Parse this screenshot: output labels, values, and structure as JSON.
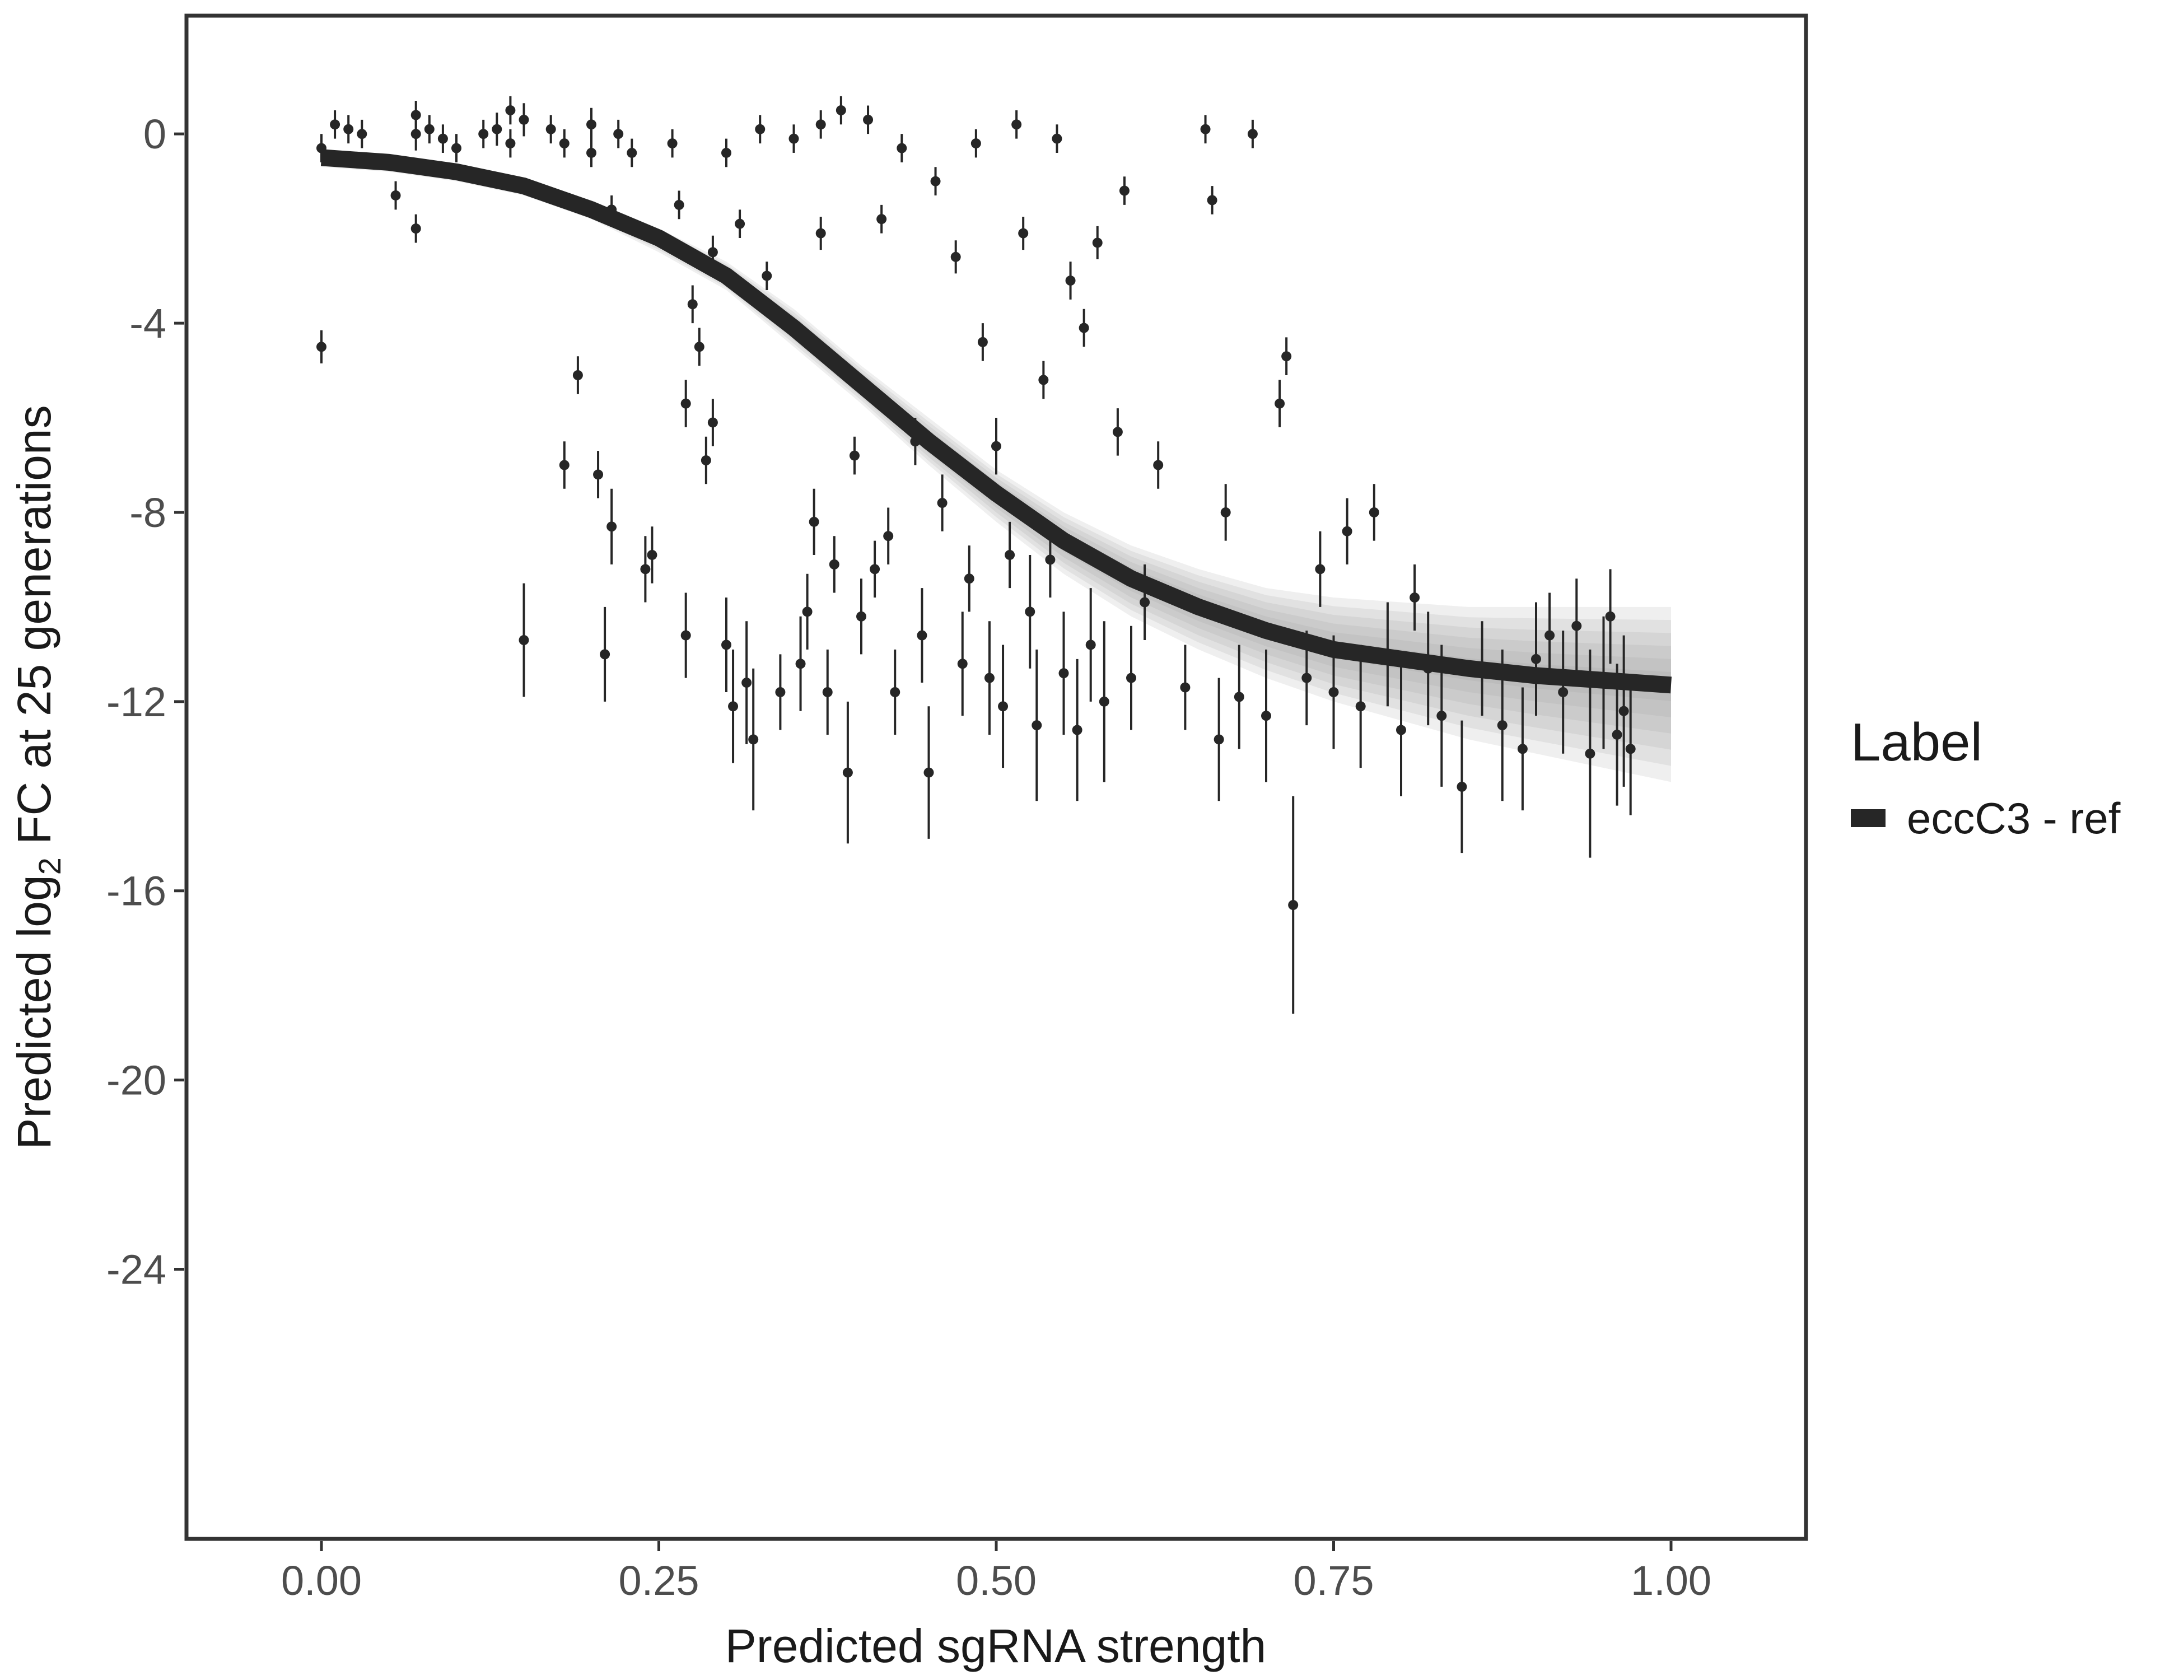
{
  "chart_data": {
    "type": "scatter",
    "title": "",
    "xlabel": "Predicted sgRNA strength",
    "ylabel_prefix": "Predicted  log",
    "ylabel_sub": "2",
    "ylabel_suffix": " FC at 25 generations",
    "xlim": [
      -0.1,
      1.1
    ],
    "ylim": [
      -29.7,
      2.5
    ],
    "x_ticks": [
      0.0,
      0.25,
      0.5,
      0.75,
      1.0
    ],
    "x_tick_labels": [
      "0.00",
      "0.25",
      "0.50",
      "0.75",
      "1.00"
    ],
    "y_ticks": [
      0,
      -4,
      -8,
      -12,
      -16,
      -20,
      -24
    ],
    "y_tick_labels": [
      "0",
      "-4",
      "-8",
      "-12",
      "-16",
      "-20",
      "-24"
    ],
    "grid": false,
    "legend": {
      "title": "Label",
      "position": "right",
      "entries": [
        {
          "name": "eccC3 - ref",
          "color": "#262626"
        }
      ]
    },
    "colors": {
      "points": "#262626",
      "fit_line": "#262626",
      "posterior_band": "#9e9e9e",
      "frame": "#333333"
    },
    "fit_curve": {
      "x": [
        0.0,
        0.05,
        0.1,
        0.15,
        0.2,
        0.25,
        0.3,
        0.35,
        0.4,
        0.45,
        0.5,
        0.55,
        0.6,
        0.65,
        0.7,
        0.75,
        0.8,
        0.85,
        0.9,
        0.95,
        1.0
      ],
      "y": [
        -0.5,
        -0.6,
        -0.8,
        -1.1,
        -1.6,
        -2.2,
        -3.0,
        -4.1,
        -5.3,
        -6.5,
        -7.6,
        -8.6,
        -9.4,
        -10.0,
        -10.5,
        -10.9,
        -11.1,
        -11.3,
        -11.45,
        -11.55,
        -11.65
      ],
      "band_lower": [
        -0.45,
        -0.55,
        -0.7,
        -1.0,
        -1.4,
        -2.0,
        -2.7,
        -3.7,
        -4.9,
        -6.0,
        -7.1,
        -8.0,
        -8.7,
        -9.2,
        -9.6,
        -9.8,
        -9.9,
        -10.0,
        -10.0,
        -10.0,
        -10.0
      ],
      "band_upper": [
        -0.7,
        -0.8,
        -1.0,
        -1.3,
        -1.8,
        -2.5,
        -3.3,
        -4.5,
        -5.7,
        -7.0,
        -8.2,
        -9.3,
        -10.2,
        -10.9,
        -11.5,
        -12.0,
        -12.4,
        -12.8,
        -13.1,
        -13.4,
        -13.7
      ]
    },
    "points": [
      {
        "x": 0.0,
        "y": -0.3,
        "err": 0.3
      },
      {
        "x": 0.0,
        "y": -4.5,
        "err": 0.35
      },
      {
        "x": 0.01,
        "y": 0.2,
        "err": 0.3
      },
      {
        "x": 0.02,
        "y": 0.1,
        "err": 0.3
      },
      {
        "x": 0.03,
        "y": 0.0,
        "err": 0.3
      },
      {
        "x": 0.055,
        "y": -1.3,
        "err": 0.3
      },
      {
        "x": 0.07,
        "y": 0.0,
        "err": 0.35
      },
      {
        "x": 0.07,
        "y": 0.4,
        "err": 0.3
      },
      {
        "x": 0.07,
        "y": -2.0,
        "err": 0.3
      },
      {
        "x": 0.08,
        "y": 0.1,
        "err": 0.3
      },
      {
        "x": 0.09,
        "y": -0.1,
        "err": 0.3
      },
      {
        "x": 0.1,
        "y": -0.3,
        "err": 0.3
      },
      {
        "x": 0.12,
        "y": 0.0,
        "err": 0.3
      },
      {
        "x": 0.13,
        "y": 0.1,
        "err": 0.35
      },
      {
        "x": 0.14,
        "y": 0.5,
        "err": 0.3
      },
      {
        "x": 0.14,
        "y": -0.2,
        "err": 0.3
      },
      {
        "x": 0.15,
        "y": 0.3,
        "err": 0.35
      },
      {
        "x": 0.15,
        "y": -10.7,
        "err": 1.2
      },
      {
        "x": 0.17,
        "y": 0.1,
        "err": 0.3
      },
      {
        "x": 0.18,
        "y": -0.2,
        "err": 0.3
      },
      {
        "x": 0.18,
        "y": -7.0,
        "err": 0.5
      },
      {
        "x": 0.19,
        "y": -5.1,
        "err": 0.4
      },
      {
        "x": 0.2,
        "y": -0.4,
        "err": 0.3
      },
      {
        "x": 0.2,
        "y": 0.2,
        "err": 0.35
      },
      {
        "x": 0.205,
        "y": -7.2,
        "err": 0.5
      },
      {
        "x": 0.21,
        "y": -11.0,
        "err": 1.0
      },
      {
        "x": 0.215,
        "y": -8.3,
        "err": 0.8
      },
      {
        "x": 0.215,
        "y": -1.6,
        "err": 0.3
      },
      {
        "x": 0.22,
        "y": 0.0,
        "err": 0.3
      },
      {
        "x": 0.23,
        "y": -0.4,
        "err": 0.3
      },
      {
        "x": 0.24,
        "y": -9.2,
        "err": 0.7
      },
      {
        "x": 0.245,
        "y": -8.9,
        "err": 0.6
      },
      {
        "x": 0.26,
        "y": -0.2,
        "err": 0.3
      },
      {
        "x": 0.265,
        "y": -1.5,
        "err": 0.3
      },
      {
        "x": 0.27,
        "y": -5.7,
        "err": 0.5
      },
      {
        "x": 0.27,
        "y": -10.6,
        "err": 0.9
      },
      {
        "x": 0.275,
        "y": -3.6,
        "err": 0.4
      },
      {
        "x": 0.28,
        "y": -4.5,
        "err": 0.4
      },
      {
        "x": 0.285,
        "y": -6.9,
        "err": 0.5
      },
      {
        "x": 0.29,
        "y": -2.5,
        "err": 0.35
      },
      {
        "x": 0.29,
        "y": -6.1,
        "err": 0.5
      },
      {
        "x": 0.3,
        "y": -10.8,
        "err": 1.0
      },
      {
        "x": 0.3,
        "y": -0.4,
        "err": 0.3
      },
      {
        "x": 0.305,
        "y": -12.1,
        "err": 1.2
      },
      {
        "x": 0.31,
        "y": -1.9,
        "err": 0.3
      },
      {
        "x": 0.315,
        "y": -11.6,
        "err": 1.3
      },
      {
        "x": 0.32,
        "y": -12.8,
        "err": 1.5
      },
      {
        "x": 0.325,
        "y": 0.1,
        "err": 0.3
      },
      {
        "x": 0.33,
        "y": -3.0,
        "err": 0.3
      },
      {
        "x": 0.34,
        "y": -11.8,
        "err": 0.8
      },
      {
        "x": 0.35,
        "y": -0.1,
        "err": 0.3
      },
      {
        "x": 0.355,
        "y": -11.2,
        "err": 1.0
      },
      {
        "x": 0.36,
        "y": -10.1,
        "err": 0.8
      },
      {
        "x": 0.365,
        "y": -8.2,
        "err": 0.7
      },
      {
        "x": 0.37,
        "y": 0.2,
        "err": 0.3
      },
      {
        "x": 0.37,
        "y": -2.1,
        "err": 0.35
      },
      {
        "x": 0.375,
        "y": -11.8,
        "err": 0.9
      },
      {
        "x": 0.38,
        "y": -9.1,
        "err": 0.6
      },
      {
        "x": 0.385,
        "y": 0.5,
        "err": 0.3
      },
      {
        "x": 0.39,
        "y": -13.5,
        "err": 1.5
      },
      {
        "x": 0.395,
        "y": -6.8,
        "err": 0.4
      },
      {
        "x": 0.4,
        "y": -10.2,
        "err": 0.8
      },
      {
        "x": 0.405,
        "y": 0.3,
        "err": 0.3
      },
      {
        "x": 0.41,
        "y": -9.2,
        "err": 0.6
      },
      {
        "x": 0.415,
        "y": -1.8,
        "err": 0.3
      },
      {
        "x": 0.42,
        "y": -8.5,
        "err": 0.6
      },
      {
        "x": 0.425,
        "y": -11.8,
        "err": 0.9
      },
      {
        "x": 0.43,
        "y": -0.3,
        "err": 0.3
      },
      {
        "x": 0.44,
        "y": -6.5,
        "err": 0.5
      },
      {
        "x": 0.445,
        "y": -10.6,
        "err": 1.0
      },
      {
        "x": 0.45,
        "y": -13.5,
        "err": 1.4
      },
      {
        "x": 0.455,
        "y": -1.0,
        "err": 0.3
      },
      {
        "x": 0.46,
        "y": -7.8,
        "err": 0.6
      },
      {
        "x": 0.47,
        "y": -2.6,
        "err": 0.35
      },
      {
        "x": 0.475,
        "y": -11.2,
        "err": 1.1
      },
      {
        "x": 0.48,
        "y": -9.4,
        "err": 0.7
      },
      {
        "x": 0.485,
        "y": -0.2,
        "err": 0.3
      },
      {
        "x": 0.49,
        "y": -4.4,
        "err": 0.4
      },
      {
        "x": 0.495,
        "y": -11.5,
        "err": 1.2
      },
      {
        "x": 0.5,
        "y": -6.6,
        "err": 0.6
      },
      {
        "x": 0.505,
        "y": -12.1,
        "err": 1.3
      },
      {
        "x": 0.51,
        "y": -8.9,
        "err": 0.7
      },
      {
        "x": 0.515,
        "y": 0.2,
        "err": 0.3
      },
      {
        "x": 0.52,
        "y": -2.1,
        "err": 0.35
      },
      {
        "x": 0.525,
        "y": -10.1,
        "err": 1.2
      },
      {
        "x": 0.53,
        "y": -12.5,
        "err": 1.6
      },
      {
        "x": 0.535,
        "y": -5.2,
        "err": 0.4
      },
      {
        "x": 0.54,
        "y": -9.0,
        "err": 0.8
      },
      {
        "x": 0.545,
        "y": -0.1,
        "err": 0.3
      },
      {
        "x": 0.55,
        "y": -11.4,
        "err": 1.3
      },
      {
        "x": 0.555,
        "y": -3.1,
        "err": 0.4
      },
      {
        "x": 0.56,
        "y": -12.6,
        "err": 1.5
      },
      {
        "x": 0.565,
        "y": -4.1,
        "err": 0.4
      },
      {
        "x": 0.57,
        "y": -10.8,
        "err": 1.2
      },
      {
        "x": 0.575,
        "y": -2.3,
        "err": 0.35
      },
      {
        "x": 0.58,
        "y": -12.0,
        "err": 1.7
      },
      {
        "x": 0.59,
        "y": -6.3,
        "err": 0.5
      },
      {
        "x": 0.595,
        "y": -1.2,
        "err": 0.3
      },
      {
        "x": 0.6,
        "y": -11.5,
        "err": 1.1
      },
      {
        "x": 0.61,
        "y": -9.9,
        "err": 0.8
      },
      {
        "x": 0.62,
        "y": -7.0,
        "err": 0.5
      },
      {
        "x": 0.64,
        "y": -11.7,
        "err": 0.9
      },
      {
        "x": 0.655,
        "y": 0.1,
        "err": 0.3
      },
      {
        "x": 0.66,
        "y": -1.4,
        "err": 0.3
      },
      {
        "x": 0.665,
        "y": -12.8,
        "err": 1.3
      },
      {
        "x": 0.67,
        "y": -8.0,
        "err": 0.6
      },
      {
        "x": 0.68,
        "y": -11.9,
        "err": 1.1
      },
      {
        "x": 0.69,
        "y": 0.0,
        "err": 0.3
      },
      {
        "x": 0.7,
        "y": -12.3,
        "err": 1.4
      },
      {
        "x": 0.71,
        "y": -5.7,
        "err": 0.5
      },
      {
        "x": 0.715,
        "y": -4.7,
        "err": 0.4
      },
      {
        "x": 0.72,
        "y": -16.3,
        "err": 2.3
      },
      {
        "x": 0.73,
        "y": -11.5,
        "err": 1.0
      },
      {
        "x": 0.74,
        "y": -9.2,
        "err": 0.8
      },
      {
        "x": 0.75,
        "y": -11.8,
        "err": 1.2
      },
      {
        "x": 0.76,
        "y": -8.4,
        "err": 0.7
      },
      {
        "x": 0.77,
        "y": -12.1,
        "err": 1.3
      },
      {
        "x": 0.78,
        "y": -8.0,
        "err": 0.6
      },
      {
        "x": 0.79,
        "y": -11.0,
        "err": 1.1
      },
      {
        "x": 0.8,
        "y": -12.6,
        "err": 1.4
      },
      {
        "x": 0.81,
        "y": -9.8,
        "err": 0.7
      },
      {
        "x": 0.82,
        "y": -11.3,
        "err": 1.2
      },
      {
        "x": 0.83,
        "y": -12.3,
        "err": 1.5
      },
      {
        "x": 0.845,
        "y": -13.8,
        "err": 1.4
      },
      {
        "x": 0.86,
        "y": -11.3,
        "err": 1.0
      },
      {
        "x": 0.875,
        "y": -12.5,
        "err": 1.6
      },
      {
        "x": 0.89,
        "y": -13.0,
        "err": 1.3
      },
      {
        "x": 0.9,
        "y": -11.1,
        "err": 1.2
      },
      {
        "x": 0.91,
        "y": -10.6,
        "err": 0.9
      },
      {
        "x": 0.92,
        "y": -11.8,
        "err": 1.3
      },
      {
        "x": 0.93,
        "y": -10.4,
        "err": 1.0
      },
      {
        "x": 0.94,
        "y": -13.1,
        "err": 2.2
      },
      {
        "x": 0.95,
        "y": -11.6,
        "err": 1.4
      },
      {
        "x": 0.955,
        "y": -10.2,
        "err": 1.0
      },
      {
        "x": 0.96,
        "y": -12.7,
        "err": 1.5
      },
      {
        "x": 0.965,
        "y": -12.2,
        "err": 1.6
      },
      {
        "x": 0.97,
        "y": -13.0,
        "err": 1.4
      }
    ]
  }
}
